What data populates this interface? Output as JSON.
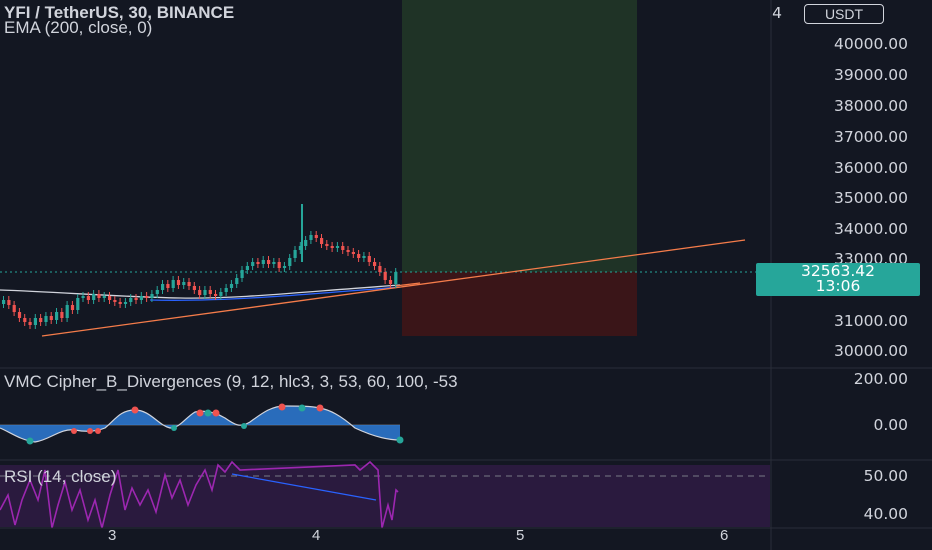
{
  "header": {
    "symbol_title": "YFI / TetherUS, 30, BINANCE",
    "indicator_ema": "EMA (200, close, 0)"
  },
  "price_axis": {
    "currency_button": "USDT",
    "labels": [
      "4",
      "40000.00",
      "39000.00",
      "38000.00",
      "37000.00",
      "36000.00",
      "35000.00",
      "34000.00",
      "33000.00",
      "31000.00",
      "30000.00"
    ],
    "last_price": "32563.42",
    "countdown": "13:06"
  },
  "vmc_pane": {
    "title": "VMC Cipher_B_Divergences (9, 12, hlc3, 3, 53, 60, 100, -53",
    "labels": [
      "200.00",
      "0.00"
    ]
  },
  "rsi_pane": {
    "title": "RSI (14, close)",
    "labels": [
      "50.00",
      "40.00"
    ]
  },
  "time_axis": {
    "labels": [
      "3",
      "4",
      "5",
      "6"
    ]
  },
  "colors": {
    "background": "#131722",
    "up_candle": "#26a69a",
    "down_candle": "#ef5350",
    "trendline": "#f57c4a",
    "rsi_line": "#9c27b0",
    "rsi_band": "#2a1a3e"
  }
}
